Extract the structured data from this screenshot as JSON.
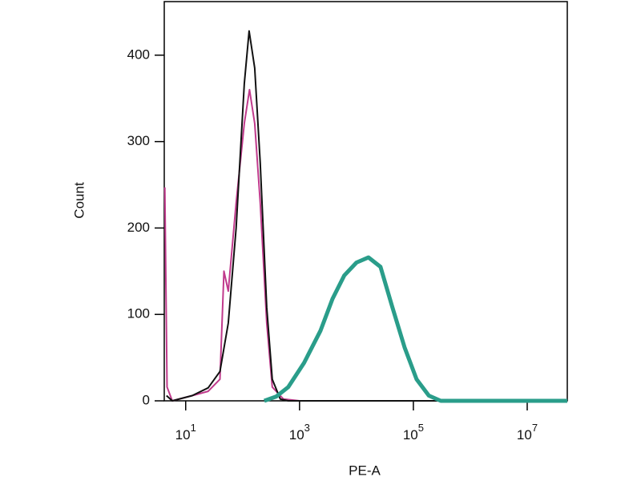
{
  "chart_data": {
    "type": "line",
    "x_scale": "log",
    "x_label": "PE-A",
    "y_label": "Count",
    "xlim": [
      4.2,
      50600000
    ],
    "ylim": [
      0,
      462
    ],
    "xticks": [
      {
        "value": 10,
        "label": "10^1"
      },
      {
        "value": 1000,
        "label": "10^3"
      },
      {
        "value": 100000,
        "label": "10^5"
      },
      {
        "value": 10000000,
        "label": "10^7"
      }
    ],
    "yticks": [
      0,
      100,
      200,
      300,
      400
    ],
    "series": [
      {
        "color": "#c03a8c",
        "width": 2,
        "x": [
          4.3,
          4.7,
          5.8,
          13,
          24.8,
          40,
          47,
          56,
          77,
          107,
          132,
          163,
          204,
          265,
          332,
          520,
          1000,
          2500
        ],
        "values": [
          247,
          16,
          0,
          6,
          11,
          25,
          150,
          127,
          229,
          321,
          360,
          321,
          229,
          90,
          16,
          2,
          0,
          0
        ]
      },
      {
        "color": "#111111",
        "width": 2,
        "x": [
          4.6,
          5.8,
          13,
          24.8,
          40,
          56,
          77,
          107,
          130,
          163,
          204,
          265,
          332,
          459,
          635,
          50600000
        ],
        "values": [
          6,
          0,
          6,
          15,
          34,
          90,
          200,
          367,
          428,
          385,
          275,
          108,
          25,
          2,
          0,
          0
        ]
      },
      {
        "color": "#2a9d8a",
        "width": 5,
        "x": [
          240,
          390,
          635,
          1200,
          2330,
          3800,
          6100,
          10000,
          16300,
          26500,
          42900,
          70000,
          114000,
          187000,
          303000,
          50600000
        ],
        "values": [
          0,
          5,
          16,
          44,
          81,
          118,
          145,
          160,
          166,
          155,
          108,
          62,
          25,
          6,
          0,
          0
        ]
      }
    ]
  }
}
